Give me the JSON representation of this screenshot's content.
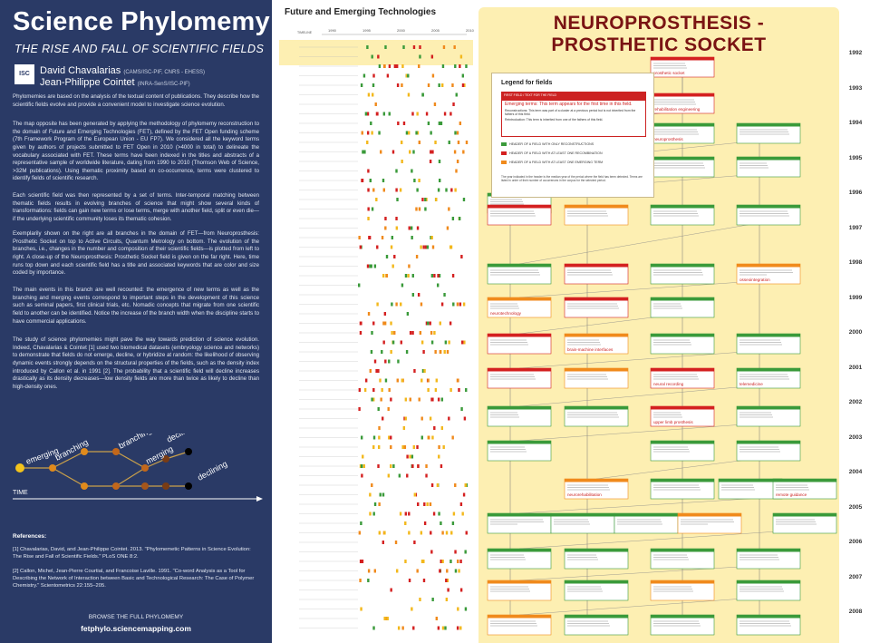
{
  "left": {
    "title": "Science Phylomemy",
    "subtitle": "THE RISE AND FALL OF SCIENTIFIC FIELDS",
    "logo": "ISC",
    "authors": [
      {
        "name": "David Chavalarias",
        "affil": "(CAMS/ISC-PIF, CNRS - EHESS)"
      },
      {
        "name": "Jean-Philippe Cointet",
        "affil": "(INRA-SenS/ISC-PIF)"
      }
    ],
    "paragraphs": [
      "Phylomemies are based on the analysis of the textual content of publications. They describe how the scientific fields evolve and provide a convenient model to investigate science evolution.",
      "The map opposite has been generated by applying the methodology of phylomemy reconstruction to the domain of Future and Emerging Technologies (FET), defined by the FET Open funding scheme (7th Framework Program of the European Union - EU FP7). We considered all the keyword terms given by authors of projects submitted to FET Open in 2010 (>4000 in total) to delineate the vocabulary associated with FET. These terms have been indexed in the titles and abstracts of a representative sample of worldwide literature, dating from 1990 to 2010 (Thomson Web of Science, >32M publications). Using thematic proximity based on co-occurrence, terms were clustered to identify fields of scientific research.",
      "Each scientific field was then represented by a set of terms. Inter-temporal matching between thematic fields results in evolving branches of science that might show several kinds of transformations: fields can gain new terms or lose terms, merge with another field, split or even die—if the underlying scientific community loses its thematic cohesion.",
      "Exemplarily shown on the right are all branches in the domain of FET—from Neuroprosthesis: Prosthetic Socket on top to Active Circuits, Quantum Metrology on bottom. The evolution of the branches, i.e., changes in the number and composition of their scientific fields—is plotted from left to right. A close-up of the Neuroprosthesis: Prosthetic Socket field is given on the far right. Here, time runs top down and each scientific field has a title and associated keywords that are color and size coded by importance.",
      "The main events in this branch are well recounted: the emergence of new terms as well as the branching and merging events correspond to important steps in the development of this science such as seminal papers, first clinical trials, etc. Nomadic concepts that migrate from one scientific field to another can be identified. Notice the increase of the branch width when the discipline starts to have commercial applications.",
      "The study of science phylomemies might pave the way towards prediction of science evolution. Indeed, Chavalarias & Cointet [1] used two biomedical datasets (embryology science and networks) to demonstrate that fields do not emerge, decline, or hybridize at random: the likelihood of observing dynamic events strongly depends on the structural properties of the fields, such as the density index introduced by Callon et al. in 1991 [2]. The probability that a scientific field will decline increases drastically as its density decreases—low density fields are more than twice as likely to decline than high-density ones."
    ],
    "evolution_labels": {
      "emerging": "emerging",
      "branching1": "branching",
      "branching2": "branching",
      "merging": "merging",
      "declining1": "declining",
      "declining2": "declining",
      "time": "TIME"
    },
    "references_heading": "References:",
    "references": [
      "[1] Chavalarias, David, and Jean-Philippe Cointet. 2013. \"Phylomemetic Patterns in Science Evolution: The Rise and Fall of Scientific Fields.\" PLoS ONE 8:2.",
      "[2] Callon, Michel, Jean-Pierre Courtial, and Francoise Laville. 1991. \"Co-word Analysis as a Tool for Describing the Network of Interaction between Basic and Technological Research: The Case of Polymer Chemistry.\" Scientometrics 22:155–205."
    ],
    "browse_label": "BROWSE THE FULL PHYLOMEMY",
    "browse_url": "fetphylo.sciencemapping.com"
  },
  "middle": {
    "title": "Future and Emerging Technologies",
    "timeline_label": "TIMELINE",
    "timeline_years": [
      "1990",
      "1995",
      "2000",
      "2005",
      "2010"
    ]
  },
  "right": {
    "title": "NEUROPROSTHESIS - PROSTHETIC SOCKET",
    "legend": {
      "heading": "Legend for fields",
      "field_bar": "FIRST FIELD / TEXT FOR THE FIELD",
      "field_line1": "Emerging terms: This term appears for the first time in this field.",
      "field_line2": "Reconstructions: This term was part of a cluster at a previous period but is not inherited from the fathers of this field.",
      "field_line3": "Reintroduction: This term is inherited from one of the fathers of this field.",
      "rows": [
        {
          "color": "#3a9a3a",
          "label": "HEADER OF A FIELD WITH ONLY RECONSTRUCTIONS"
        },
        {
          "color": "#d42020",
          "label": "HEADER OF A FIELD WITH AT LEAST ONE RECOMBINATION"
        },
        {
          "color": "#f08a1c",
          "label": "HEADER OF A FIELD WITH AT LEAST ONE EMERGING TERM"
        }
      ],
      "note": "The year indicated in the header is the median year of the period where the field has been detected. Terms are listed in order of their number of occurrences in the corpus for the selected period."
    },
    "years": [
      "1992",
      "1993",
      "1994",
      "1995",
      "1996",
      "1997",
      "1998",
      "1999",
      "2000",
      "2001",
      "2002",
      "2003",
      "2004",
      "2005",
      "2006",
      "2007",
      "2008"
    ],
    "featured_terms": [
      "prosthetic socket",
      "rehabilitation engineering",
      "active orthosis",
      "neuroprosthesis",
      "brain-machine interfaces",
      "mirror neurons",
      "neuroprosthesis",
      "neurotechnology",
      "osseointegration",
      "upper limb prosthesis",
      "telemedicine",
      "remote guidance",
      "neurorehabilitation",
      "neural recording"
    ]
  },
  "colors": {
    "navy": "#2a3a66",
    "cream": "#fdefb2",
    "red": "#d42020",
    "green": "#3a9a3a",
    "orange": "#f08a1c",
    "yellow": "#f3b81c"
  }
}
